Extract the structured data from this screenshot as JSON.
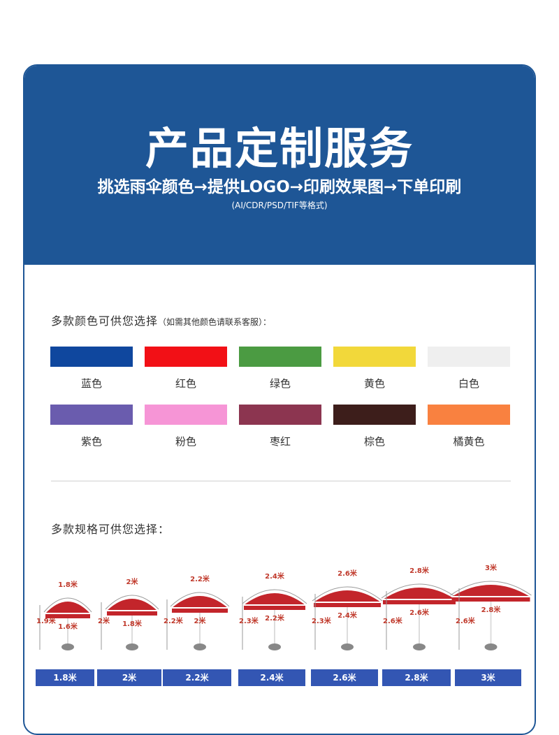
{
  "header": {
    "title": "产品定制服务",
    "steps": "挑选雨伞颜色→提供LOGO→印刷效果图→下单印刷",
    "formats": "(AI/CDR/PSD/TIF等格式)"
  },
  "colors_section": {
    "title": "多款颜色可供您选择",
    "note": "（如需其他颜色请联系客服）：",
    "colors": [
      {
        "label": "蓝色",
        "hex": "#0f479e"
      },
      {
        "label": "红色",
        "hex": "#f21016"
      },
      {
        "label": "绿色",
        "hex": "#4b9b42"
      },
      {
        "label": "黄色",
        "hex": "#f2d83a"
      },
      {
        "label": "白色",
        "hex": "#efefef"
      },
      {
        "label": "紫色",
        "hex": "#6a5cae"
      },
      {
        "label": "粉色",
        "hex": "#f695d6"
      },
      {
        "label": "枣红",
        "hex": "#8c3550"
      },
      {
        "label": "棕色",
        "hex": "#3d1e1b"
      },
      {
        "label": "橘黄色",
        "hex": "#f98140"
      }
    ]
  },
  "sizes_section": {
    "title": "多款规格可供您选择：",
    "sizes": [
      {
        "tag": "1.8米",
        "span": "1.8米",
        "canopy": "1.6米",
        "height": "1.9米",
        "rib": ""
      },
      {
        "tag": "2米",
        "span": "2米",
        "canopy": "1.8米",
        "height": "2米",
        "rib": ""
      },
      {
        "tag": "2.2米",
        "span": "2.2米",
        "canopy": "2米",
        "height": "2.2米",
        "rib": ""
      },
      {
        "tag": "2.4米",
        "span": "2.4米",
        "canopy": "2.2米",
        "height": "2.3米",
        "rib": ""
      },
      {
        "tag": "2.6米",
        "span": "2.6米",
        "canopy": "2.4米",
        "height": "2.3米",
        "rib": ""
      },
      {
        "tag": "2.8米",
        "span": "2.8米",
        "canopy": "2.6米",
        "height": "2.6米",
        "rib": ""
      },
      {
        "tag": "3米",
        "span": "3米",
        "canopy": "2.8米",
        "height": "2.6米",
        "rib": ""
      }
    ]
  },
  "accent_colors": {
    "brand_blue": "#1e5696",
    "tag_blue": "#3356b3",
    "umbrella_red": "#c3252b"
  }
}
